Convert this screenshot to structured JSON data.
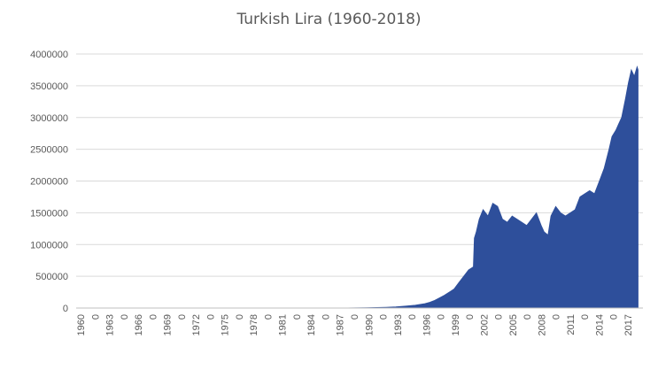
{
  "chart_data": {
    "type": "area",
    "title": "Turkish Lira (1960-2018)",
    "xlabel": "",
    "ylabel": "",
    "ylim": [
      0,
      4000000
    ],
    "yticks": [
      0,
      500000,
      1000000,
      1500000,
      2000000,
      2500000,
      3000000,
      3500000,
      4000000
    ],
    "ytick_labels": [
      "0",
      "500000",
      "1000000",
      "1500000",
      "2000000",
      "2500000",
      "3000000",
      "3500000",
      "4000000"
    ],
    "xtick_labels": [
      "1960",
      "0",
      "1963",
      "0",
      "1966",
      "0",
      "1969",
      "0",
      "1972",
      "0",
      "1975",
      "0",
      "1978",
      "0",
      "1981",
      "0",
      "1984",
      "0",
      "1987",
      "0",
      "1990",
      "0",
      "1993",
      "0",
      "1996",
      "0",
      "1999",
      "0",
      "2002",
      "0",
      "2005",
      "0",
      "2008",
      "0",
      "2011",
      "0",
      "2014",
      "0",
      "2017"
    ],
    "grid": true,
    "legend": "none",
    "color": "#2e4f9b",
    "series": [
      {
        "x": [
          1960,
          1965,
          1970,
          1975,
          1980,
          1985,
          1988,
          1990,
          1991,
          1992,
          1993,
          1994,
          1995,
          1996,
          1996.5,
          1997,
          1997.5,
          1998,
          1998.5,
          1999,
          1999.5,
          2000,
          2000.5,
          2001,
          2001.1,
          2001.3,
          2001.6,
          2002,
          2002.5,
          2003,
          2003.5,
          2004,
          2004.5,
          2005,
          2005.5,
          2006,
          2006.5,
          2007,
          2007.5,
          2008,
          2008.3,
          2008.7,
          2009,
          2009.5,
          2010,
          2010.5,
          2011,
          2011.5,
          2012,
          2012.5,
          2013,
          2013.5,
          2014,
          2014.5,
          2015,
          2015.3,
          2015.7,
          2016,
          2016.3,
          2016.7,
          2017,
          2017.3,
          2017.6,
          2017.9,
          2018
        ],
        "values": [
          0,
          0,
          0,
          0,
          0,
          0,
          2000,
          5000,
          8000,
          12000,
          20000,
          30000,
          45000,
          70000,
          90000,
          120000,
          160000,
          200000,
          250000,
          300000,
          400000,
          500000,
          600000,
          650000,
          1100000,
          1200000,
          1400000,
          1550000,
          1450000,
          1650000,
          1600000,
          1400000,
          1350000,
          1450000,
          1400000,
          1350000,
          1300000,
          1400000,
          1500000,
          1300000,
          1200000,
          1150000,
          1450000,
          1600000,
          1500000,
          1450000,
          1500000,
          1550000,
          1750000,
          1800000,
          1850000,
          1800000,
          2000000,
          2200000,
          2500000,
          2700000,
          2800000,
          2900000,
          3000000,
          3300000,
          3550000,
          3750000,
          3650000,
          3800000,
          3750000
        ]
      }
    ]
  }
}
